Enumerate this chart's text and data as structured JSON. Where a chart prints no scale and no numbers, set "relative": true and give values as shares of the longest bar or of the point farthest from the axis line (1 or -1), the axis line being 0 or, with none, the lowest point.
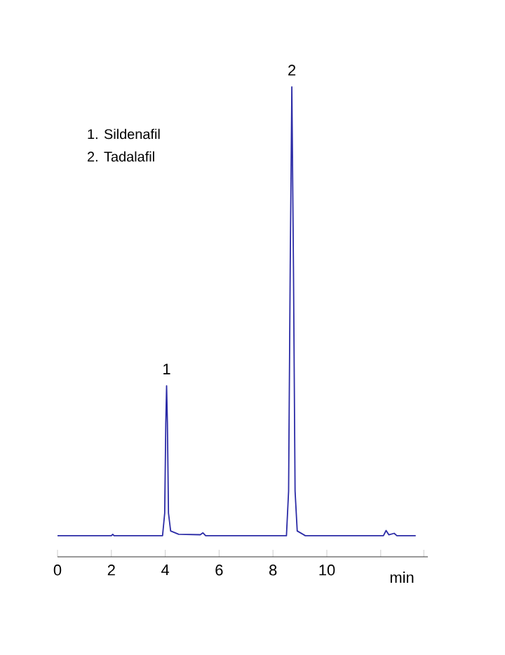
{
  "chart_data": {
    "type": "line",
    "relative": true,
    "xlabel": "min",
    "x": [
      0,
      2,
      2.05,
      2.1,
      3.9,
      3.98,
      4.02,
      4.05,
      4.08,
      4.12,
      4.2,
      4.5,
      5.3,
      5.4,
      5.5,
      8.5,
      8.58,
      8.64,
      8.7,
      8.76,
      8.82,
      8.9,
      9.2,
      11.6,
      12.1,
      12.2,
      12.3,
      12.5,
      12.6,
      13.3
    ],
    "values": [
      0.045,
      0.045,
      0.048,
      0.045,
      0.045,
      0.093,
      0.284,
      0.364,
      0.284,
      0.093,
      0.055,
      0.048,
      0.047,
      0.051,
      0.045,
      0.045,
      0.14,
      0.618,
      1,
      0.618,
      0.14,
      0.055,
      0.045,
      0.045,
      0.045,
      0.056,
      0.047,
      0.05,
      0.045,
      0.045
    ],
    "color": "#2b2ba6",
    "xlim": [
      0,
      13.75
    ],
    "xticks": [
      0,
      2,
      4,
      6,
      8,
      10,
      {
        "value": 12,
        "label": null
      },
      {
        "value": 13.6,
        "label": null
      }
    ],
    "tick_labels": "x",
    "grid": false,
    "marker": "none",
    "line_style": "solid",
    "annotations": [
      "1.    Sildenafil",
      "2.    Tadalafil",
      {
        "text": "1",
        "x": 4.05,
        "y": 0.364
      },
      {
        "text": "2",
        "x": 8.7,
        "y": 1
      }
    ]
  }
}
